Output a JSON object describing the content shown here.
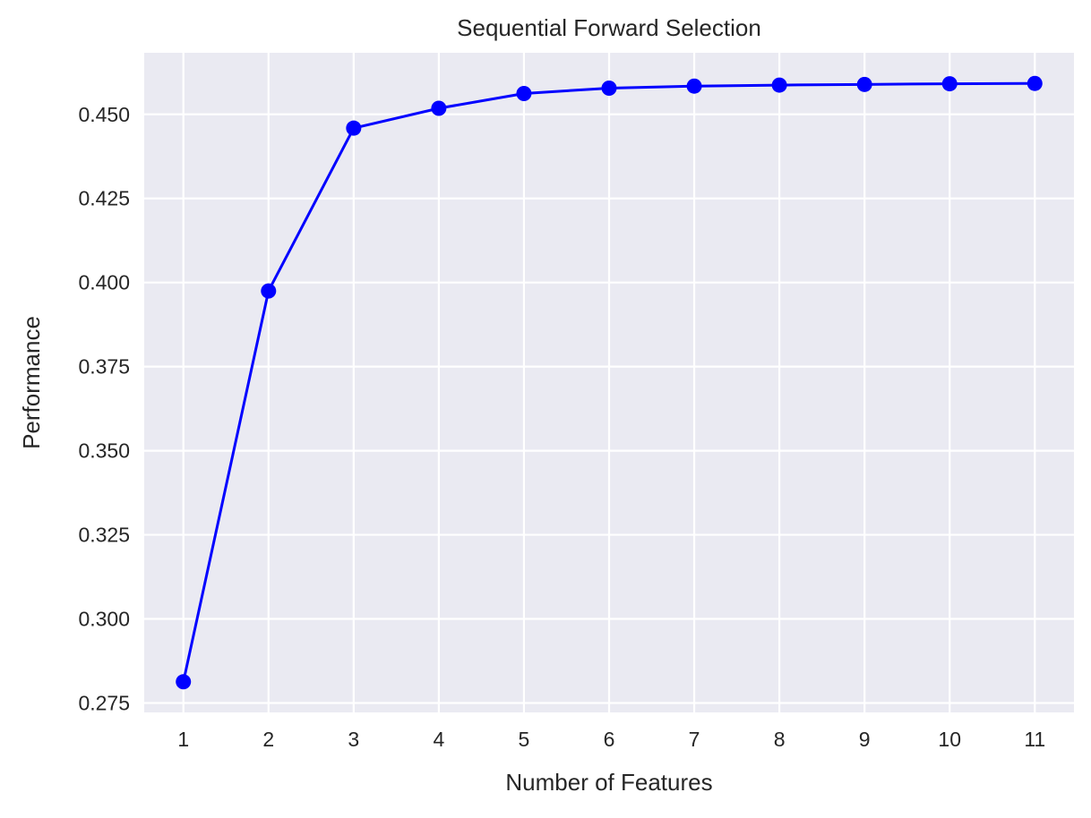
{
  "chart_data": {
    "type": "line",
    "title": "Sequential Forward Selection",
    "xlabel": "Number of Features",
    "ylabel": "Performance",
    "x": [
      1,
      2,
      3,
      4,
      5,
      6,
      7,
      8,
      9,
      10,
      11
    ],
    "series": [
      {
        "values": [
          0.2813,
          0.3975,
          0.4459,
          0.4518,
          0.4562,
          0.4578,
          0.4584,
          0.4587,
          0.4589,
          0.4591,
          0.4592
        ],
        "color": "#0000ff",
        "marker": "circle"
      }
    ],
    "xticks": [
      "1",
      "2",
      "3",
      "4",
      "5",
      "6",
      "7",
      "8",
      "9",
      "10",
      "11"
    ],
    "yticks": [
      "0.275",
      "0.300",
      "0.325",
      "0.350",
      "0.375",
      "0.400",
      "0.425",
      "0.450"
    ],
    "xlim": [
      0.54,
      11.46
    ],
    "ylim": [
      0.2722,
      0.4683
    ],
    "grid": true,
    "background": "#eaeaf2",
    "grid_color": "#ffffff"
  }
}
